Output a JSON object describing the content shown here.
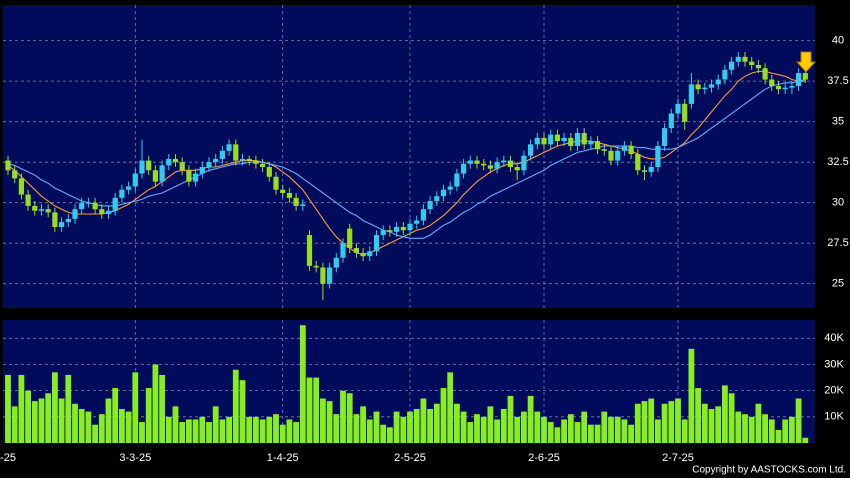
{
  "chart_data": {
    "type": "candlestick",
    "categories": [
      "-25",
      null,
      null,
      null,
      null,
      null,
      null,
      null,
      null,
      null,
      null,
      null,
      null,
      null,
      null,
      null,
      null,
      null,
      null,
      "3-3-25",
      null,
      null,
      null,
      null,
      null,
      null,
      null,
      null,
      null,
      null,
      null,
      null,
      null,
      null,
      null,
      null,
      null,
      null,
      null,
      null,
      null,
      "1-4-25",
      null,
      null,
      null,
      null,
      null,
      null,
      null,
      null,
      null,
      null,
      null,
      null,
      null,
      null,
      null,
      null,
      null,
      null,
      "2-5-25",
      null,
      null,
      null,
      null,
      null,
      null,
      null,
      null,
      null,
      null,
      null,
      null,
      null,
      null,
      null,
      null,
      null,
      null,
      null,
      "2-6-25",
      null,
      null,
      null,
      null,
      null,
      null,
      null,
      null,
      null,
      null,
      null,
      null,
      null,
      null,
      null,
      null,
      null,
      null,
      null,
      "2-7-25",
      null,
      null,
      null,
      null,
      null,
      null,
      null,
      null,
      null,
      null,
      null,
      null,
      null,
      null,
      null,
      null,
      null,
      null,
      null
    ],
    "open": [
      32.6,
      32.0,
      31.5,
      30.5,
      29.8,
      29.5,
      29.6,
      29.4,
      28.5,
      28.8,
      29.0,
      29.6,
      30.0,
      30.0,
      29.6,
      29.3,
      29.5,
      30.3,
      30.8,
      31.0,
      31.8,
      32.6,
      32.0,
      31.3,
      32.3,
      32.7,
      32.5,
      32.0,
      31.3,
      31.8,
      32.2,
      32.5,
      32.7,
      33.2,
      33.6,
      32.6,
      32.7,
      32.6,
      32.4,
      32.2,
      31.6,
      30.8,
      30.6,
      30.3,
      29.8,
      28.0,
      26.1,
      26.0,
      25.0,
      26.0,
      26.6,
      28.4,
      27.2,
      26.9,
      26.7,
      27.0,
      28.0,
      28.3,
      28.2,
      28.5,
      28.3,
      28.7,
      28.9,
      29.6,
      30.1,
      30.4,
      30.8,
      31.0,
      31.8,
      32.4,
      32.6,
      32.4,
      32.3,
      32.1,
      32.5,
      32.6,
      32.2,
      32.0,
      32.9,
      33.6,
      34.0,
      33.6,
      34.2,
      33.8,
      34.0,
      33.5,
      34.3,
      33.6,
      33.8,
      33.3,
      33.2,
      32.6,
      33.2,
      33.5,
      33.0,
      32.0,
      31.9,
      32.2,
      33.5,
      34.6,
      35.5,
      36.1,
      36.1,
      37.3,
      37.0,
      37.1,
      37.3,
      37.6,
      38.2,
      38.7,
      39.0,
      38.7,
      38.5,
      38.3,
      37.6,
      37.2,
      37.0,
      37.1,
      37.2,
      38.0
    ],
    "high": [
      32.9,
      32.3,
      31.8,
      30.8,
      30.1,
      29.9,
      29.9,
      29.7,
      29.1,
      29.3,
      29.9,
      30.3,
      30.3,
      30.3,
      29.9,
      29.8,
      30.6,
      31.1,
      31.3,
      32.1,
      33.9,
      32.9,
      32.3,
      32.6,
      33.0,
      33.0,
      32.8,
      32.3,
      32.1,
      32.5,
      32.8,
      33.0,
      33.5,
      33.9,
      33.9,
      33.0,
      32.9,
      32.9,
      32.7,
      32.5,
      31.9,
      31.1,
      30.9,
      30.6,
      30.2,
      28.3,
      26.4,
      26.3,
      26.3,
      26.9,
      27.8,
      28.7,
      27.5,
      27.2,
      27.3,
      28.3,
      28.6,
      28.6,
      28.8,
      28.8,
      29.0,
      29.2,
      29.9,
      30.4,
      30.7,
      31.1,
      31.3,
      32.1,
      32.7,
      32.9,
      32.9,
      32.7,
      32.6,
      32.8,
      32.9,
      32.9,
      32.5,
      33.2,
      33.9,
      34.3,
      34.3,
      34.5,
      34.5,
      34.3,
      34.3,
      34.6,
      34.6,
      34.1,
      34.1,
      33.6,
      33.5,
      33.5,
      33.8,
      33.8,
      33.3,
      32.3,
      32.5,
      33.8,
      34.9,
      35.8,
      36.4,
      36.4,
      38.0,
      37.6,
      37.4,
      37.6,
      37.9,
      38.5,
      39.0,
      39.3,
      39.3,
      39.0,
      38.8,
      38.6,
      37.9,
      37.5,
      37.4,
      37.5,
      38.3,
      38.1
    ],
    "low": [
      31.7,
      31.2,
      30.2,
      29.5,
      29.2,
      29.2,
      29.1,
      28.2,
      28.2,
      28.5,
      28.7,
      29.3,
      29.7,
      29.3,
      29.0,
      29.0,
      29.2,
      30.0,
      30.5,
      30.7,
      31.5,
      31.7,
      31.0,
      31.0,
      32.0,
      32.2,
      31.7,
      31.0,
      31.0,
      31.5,
      31.9,
      32.2,
      32.4,
      32.9,
      32.3,
      32.3,
      32.3,
      32.1,
      31.9,
      31.3,
      30.5,
      30.3,
      30.0,
      29.5,
      29.5,
      25.8,
      25.7,
      24.0,
      24.7,
      25.7,
      26.3,
      26.9,
      26.6,
      26.4,
      26.4,
      26.7,
      27.7,
      27.9,
      27.9,
      28.0,
      28.0,
      28.4,
      28.6,
      29.3,
      29.8,
      30.1,
      30.5,
      30.7,
      31.5,
      32.1,
      32.1,
      32.0,
      31.8,
      31.8,
      32.2,
      31.9,
      31.4,
      31.7,
      32.6,
      33.3,
      33.3,
      33.3,
      33.5,
      33.5,
      33.2,
      33.2,
      33.3,
      33.3,
      33.0,
      32.9,
      32.3,
      32.3,
      32.9,
      32.7,
      31.7,
      31.4,
      31.6,
      31.9,
      33.2,
      34.3,
      35.2,
      34.5,
      35.8,
      36.7,
      36.7,
      36.8,
      37.0,
      37.3,
      37.9,
      38.4,
      38.4,
      38.2,
      38.0,
      37.3,
      36.9,
      36.7,
      36.7,
      36.7,
      36.9,
      37.4
    ],
    "close": [
      32.0,
      31.5,
      30.5,
      29.8,
      29.5,
      29.6,
      29.4,
      28.5,
      28.8,
      29.0,
      29.6,
      30.0,
      30.0,
      29.6,
      29.3,
      29.5,
      30.3,
      30.8,
      31.0,
      31.8,
      32.6,
      32.0,
      31.3,
      32.3,
      32.7,
      32.5,
      32.0,
      31.3,
      31.8,
      32.2,
      32.5,
      32.7,
      33.2,
      33.6,
      32.6,
      32.7,
      32.6,
      32.4,
      32.2,
      31.6,
      30.8,
      30.6,
      30.3,
      29.8,
      29.9,
      26.1,
      26.0,
      25.0,
      26.0,
      26.6,
      27.5,
      27.2,
      26.9,
      26.7,
      27.0,
      28.0,
      28.3,
      28.2,
      28.5,
      28.3,
      28.7,
      28.9,
      29.6,
      30.1,
      30.4,
      30.8,
      31.0,
      31.8,
      32.4,
      32.6,
      32.4,
      32.3,
      32.1,
      32.5,
      32.6,
      32.2,
      32.0,
      32.9,
      33.6,
      34.0,
      33.6,
      34.2,
      33.8,
      34.0,
      33.5,
      34.3,
      33.6,
      33.8,
      33.3,
      33.2,
      32.6,
      33.2,
      33.5,
      33.0,
      32.0,
      31.9,
      32.2,
      33.5,
      34.6,
      35.5,
      36.1,
      35.0,
      37.3,
      37.0,
      37.1,
      37.3,
      37.6,
      38.2,
      38.7,
      39.0,
      38.7,
      38.5,
      38.3,
      37.6,
      37.2,
      37.0,
      37.1,
      37.2,
      38.0,
      37.6
    ],
    "up_color": "#33ccee",
    "down_color": "#99dd22",
    "ma_lines": [
      {
        "color": "#ff9933",
        "values": [
          32.3,
          32.0,
          31.6,
          31.2,
          30.8,
          30.4,
          30.1,
          29.8,
          29.6,
          29.4,
          29.3,
          29.3,
          29.3,
          29.3,
          29.3,
          29.4,
          29.5,
          29.7,
          29.9,
          30.2,
          30.5,
          30.8,
          31.0,
          31.3,
          31.6,
          31.9,
          32.0,
          32.0,
          32.0,
          32.1,
          32.2,
          32.2,
          32.3,
          32.4,
          32.5,
          32.6,
          32.6,
          32.6,
          32.5,
          32.4,
          32.2,
          31.9,
          31.6,
          31.2,
          30.8,
          30.2,
          29.6,
          29.0,
          28.4,
          27.9,
          27.5,
          27.2,
          26.9,
          26.8,
          26.9,
          27.1,
          27.3,
          27.5,
          27.7,
          27.9,
          28.1,
          28.3,
          28.4,
          28.6,
          28.9,
          29.2,
          29.6,
          30.0,
          30.5,
          30.9,
          31.3,
          31.6,
          31.9,
          32.1,
          32.3,
          32.4,
          32.4,
          32.5,
          32.7,
          32.9,
          33.1,
          33.3,
          33.5,
          33.6,
          33.7,
          33.8,
          33.8,
          33.8,
          33.7,
          33.6,
          33.5,
          33.4,
          33.3,
          33.2,
          33.0,
          32.8,
          32.7,
          32.7,
          32.8,
          33.1,
          33.4,
          33.7,
          34.2,
          34.6,
          35.1,
          35.6,
          36.1,
          36.6,
          37.0,
          37.5,
          37.8,
          38.0,
          38.1,
          38.1,
          38.0,
          37.9,
          37.8,
          37.6,
          37.5,
          37.5
        ]
      },
      {
        "color": "#66aaff",
        "values": [
          32.4,
          32.3,
          32.1,
          31.9,
          31.7,
          31.4,
          31.2,
          30.9,
          30.7,
          30.5,
          30.3,
          30.1,
          30.0,
          29.9,
          29.8,
          29.8,
          29.8,
          29.9,
          30.0,
          30.1,
          30.2,
          30.4,
          30.5,
          30.6,
          30.8,
          31.0,
          31.2,
          31.4,
          31.6,
          31.8,
          32.0,
          32.1,
          32.2,
          32.3,
          32.4,
          32.4,
          32.5,
          32.5,
          32.5,
          32.4,
          32.3,
          32.2,
          32.0,
          31.8,
          31.5,
          31.2,
          30.9,
          30.6,
          30.3,
          30.0,
          29.7,
          29.4,
          29.2,
          28.9,
          28.7,
          28.5,
          28.3,
          28.2,
          28.0,
          27.9,
          27.8,
          27.8,
          27.8,
          28.0,
          28.3,
          28.6,
          28.8,
          29.1,
          29.4,
          29.6,
          29.9,
          30.1,
          30.4,
          30.6,
          30.8,
          31.0,
          31.2,
          31.4,
          31.6,
          31.8,
          32.0,
          32.3,
          32.5,
          32.7,
          32.9,
          33.1,
          33.2,
          33.3,
          33.4,
          33.5,
          33.5,
          33.5,
          33.5,
          33.5,
          33.4,
          33.4,
          33.3,
          33.3,
          33.3,
          33.3,
          33.4,
          33.6,
          33.8,
          34.0,
          34.3,
          34.6,
          34.9,
          35.2,
          35.5,
          35.8,
          36.1,
          36.4,
          36.7,
          37.0,
          37.2,
          37.3,
          37.4,
          37.4,
          37.5,
          37.6
        ]
      }
    ],
    "ylim": [
      23.5,
      42.2
    ],
    "yticks": [
      25,
      27.5,
      30,
      32.5,
      35,
      37.5,
      40
    ],
    "volume": [
      26000,
      14000,
      26000,
      20000,
      16000,
      17000,
      19000,
      27000,
      17000,
      26000,
      15000,
      13000,
      12000,
      7000,
      11000,
      17000,
      21000,
      13000,
      12000,
      27000,
      8000,
      21000,
      30000,
      26000,
      10000,
      14000,
      8000,
      9000,
      9000,
      10000,
      8000,
      14000,
      9000,
      10000,
      28000,
      24000,
      10000,
      10000,
      9000,
      10000,
      11000,
      7000,
      9000,
      8000,
      45000,
      25000,
      25000,
      17000,
      16000,
      11000,
      20000,
      19000,
      11000,
      14000,
      9000,
      12000,
      7000,
      6000,
      12000,
      10000,
      12000,
      13000,
      17000,
      13000,
      15000,
      21000,
      27000,
      15000,
      12000,
      8000,
      11000,
      10000,
      14000,
      9000,
      13000,
      18000,
      10000,
      12000,
      18000,
      12000,
      10000,
      8000,
      6000,
      9000,
      11000,
      8000,
      12000,
      7000,
      7000,
      12000,
      10000,
      10000,
      9000,
      7000,
      15000,
      16000,
      17000,
      9000,
      15000,
      16000,
      17000,
      9000,
      36000,
      21000,
      15000,
      13000,
      14000,
      22000,
      19000,
      12000,
      11000,
      10000,
      15000,
      11000,
      9000,
      5000,
      9000,
      10000,
      17000,
      2000
    ],
    "volume_color": "#88ee22",
    "vlim": [
      0,
      47000
    ],
    "vticks": [
      {
        "value": 10000,
        "label": "10K"
      },
      {
        "value": 20000,
        "label": "20K"
      },
      {
        "value": 30000,
        "label": "30K"
      },
      {
        "value": 40000,
        "label": "40K"
      }
    ],
    "grid": true,
    "footer": "Copyright by AASTOCKS.com Ltd."
  }
}
